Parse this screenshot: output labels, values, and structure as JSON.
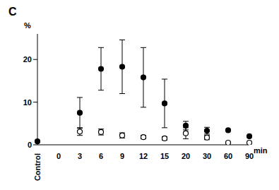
{
  "chart_data": {
    "type": "scatter",
    "title": "C",
    "x_label": "min",
    "y_label": "%",
    "categories": [
      "Control",
      "0",
      "3",
      "6",
      "9",
      "12",
      "15",
      "20",
      "30",
      "60",
      "90"
    ],
    "ylim": [
      0,
      26
    ],
    "yticks": [
      0,
      10,
      20
    ],
    "grid": false,
    "series": [
      {
        "color": "#000000",
        "marker": "filled_circle",
        "values": [
          0.8,
          null,
          7.5,
          17.8,
          18.3,
          15.8,
          9.7,
          4.5,
          3.3,
          3.4,
          2.0
        ],
        "errors": [
          null,
          null,
          3.6,
          5.0,
          6.3,
          7.0,
          5.7,
          1.0,
          0.8,
          null,
          null
        ]
      },
      {
        "color": "#000000",
        "marker": "open_circle",
        "values": [
          null,
          null,
          3.1,
          3.0,
          2.2,
          1.8,
          1.5,
          2.7,
          1.7,
          0.5,
          0.5
        ],
        "errors": [
          null,
          null,
          0.9,
          0.7,
          0.6,
          0.4,
          0.4,
          1.3,
          0.5,
          null,
          null
        ]
      }
    ]
  }
}
